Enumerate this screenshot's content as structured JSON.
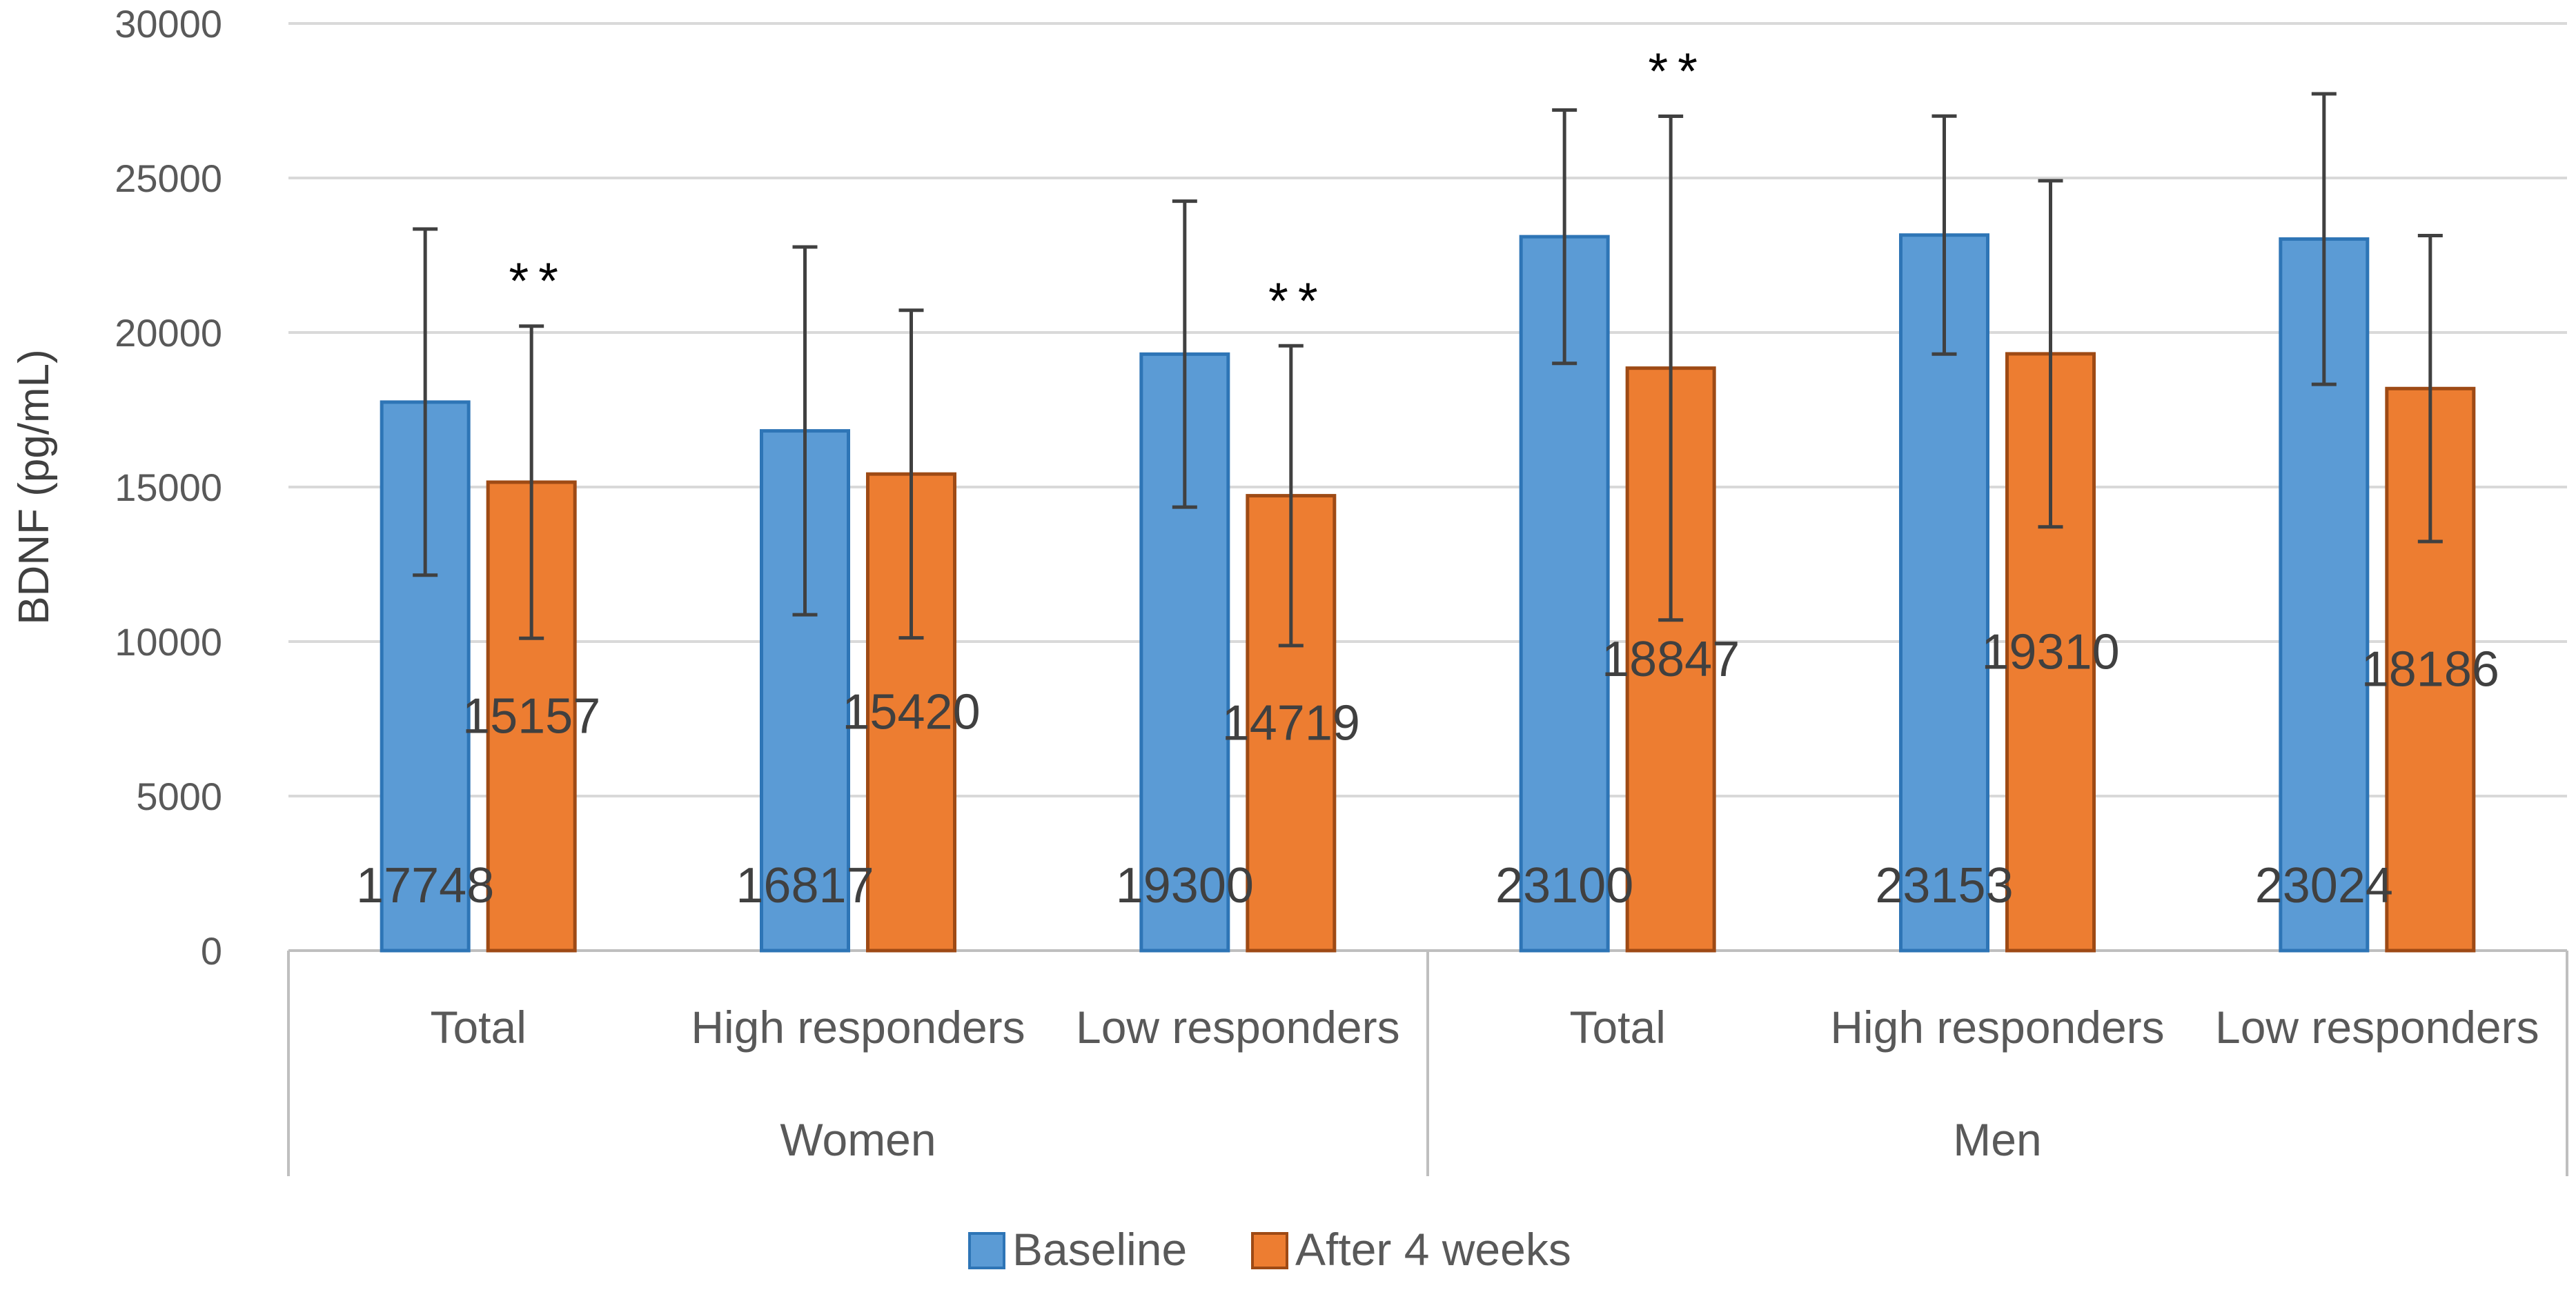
{
  "chart_data": {
    "type": "bar",
    "ylabel": "BDNF (pg/mL)",
    "ylim": [
      0,
      30000
    ],
    "yticks": [
      0,
      5000,
      10000,
      15000,
      20000,
      25000,
      30000
    ],
    "grid": true,
    "groups": [
      {
        "label": "Women",
        "categories": [
          "Total",
          "High responders",
          "Low responders"
        ]
      },
      {
        "label": "Men",
        "categories": [
          "Total",
          "High responders",
          "Low responders"
        ]
      }
    ],
    "series": [
      {
        "name": "Baseline",
        "color": "#5b9bd5",
        "border": "#2e75b6",
        "values": [
          17748,
          16817,
          19300,
          23100,
          23153,
          23024
        ],
        "value_labels": [
          "17748",
          "16817",
          "19300",
          "23100",
          "23153",
          "23024"
        ],
        "errors": [
          5600,
          5950,
          4950,
          4100,
          3850,
          4700
        ]
      },
      {
        "name": "After 4 weeks",
        "color": "#ed7d31",
        "border": "#9e4a15",
        "values": [
          15157,
          15420,
          14719,
          18847,
          19310,
          18186
        ],
        "value_labels": [
          "15157",
          "15420",
          "14719",
          "18847",
          "19310",
          "18186"
        ],
        "errors": [
          5050,
          5300,
          4850,
          8150,
          5600,
          4950
        ]
      }
    ],
    "significance": [
      {
        "category_index": 0,
        "series_index": 1,
        "label": "**"
      },
      {
        "category_index": 2,
        "series_index": 1,
        "label": "**"
      },
      {
        "category_index": 3,
        "series_index": 1,
        "label": "**"
      }
    ],
    "legend_position": "bottom"
  }
}
